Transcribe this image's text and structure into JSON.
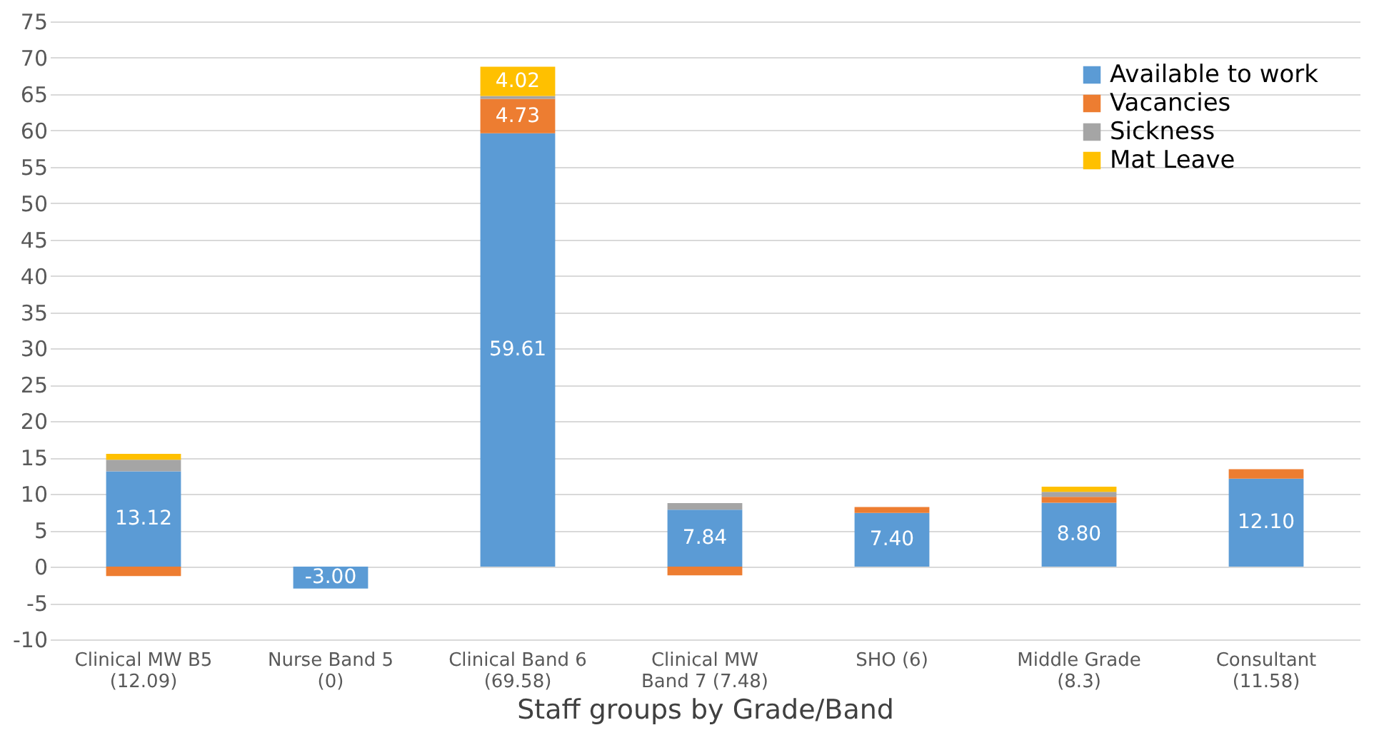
{
  "chart_data": {
    "type": "bar",
    "stacked": true,
    "xlabel": "Staff groups by Grade/Band",
    "categories": [
      "Clinical MW B5\n(12.09)",
      "Nurse Band 5\n(0)",
      "Clinical Band 6\n(69.58)",
      "Clinical MW\nBand 7 (7.48)",
      "SHO (6)",
      "Middle Grade\n(8.3)",
      "Consultant\n(11.58)"
    ],
    "series": [
      {
        "name": "Available to work",
        "color": "#5b9bd5",
        "values": [
          13.12,
          -3.0,
          59.61,
          7.84,
          7.4,
          8.8,
          12.1
        ],
        "value_labels": [
          "13.12",
          "-3.00",
          "59.61",
          "7.84",
          "7.40",
          "8.80",
          "12.10"
        ]
      },
      {
        "name": "Vacancies",
        "color": "#ed7d31",
        "values": [
          -1.3,
          null,
          4.73,
          -1.2,
          0.8,
          0.8,
          1.3
        ],
        "value_labels": [
          null,
          null,
          "4.73",
          null,
          null,
          null,
          null
        ]
      },
      {
        "name": "Sickness",
        "color": "#a5a5a5",
        "values": [
          1.6,
          null,
          0.4,
          0.9,
          null,
          0.7,
          null
        ]
      },
      {
        "name": "Mat Leave",
        "color": "#ffc000",
        "values": [
          0.8,
          null,
          4.02,
          null,
          null,
          0.7,
          null
        ],
        "value_labels": [
          null,
          null,
          "4.02",
          null,
          null,
          null,
          null
        ]
      }
    ],
    "ylim": [
      -10,
      75
    ],
    "yticks": [
      -10,
      -5,
      0,
      5,
      10,
      15,
      20,
      25,
      30,
      35,
      40,
      45,
      50,
      55,
      60,
      65,
      70,
      75
    ],
    "grid": "y",
    "legend": "top right"
  }
}
